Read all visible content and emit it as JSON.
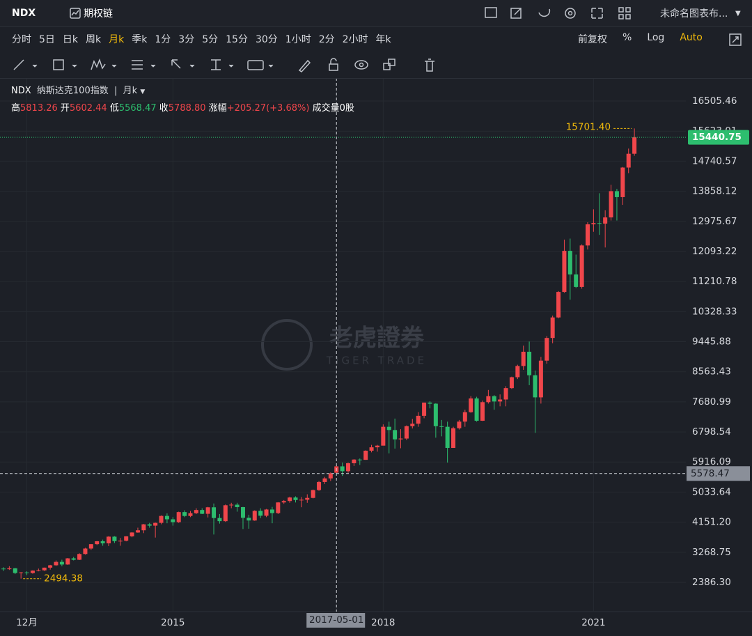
{
  "toolbar": {
    "symbol": "NDX",
    "option_chain": "期权链",
    "layout_name": "未命名图表布..."
  },
  "periods": [
    "分时",
    "5日",
    "日k",
    "周k",
    "月k",
    "季k",
    "1分",
    "3分",
    "5分",
    "15分",
    "30分",
    "1小时",
    "2分",
    "2小时",
    "年k"
  ],
  "right_controls": [
    "前复权",
    "%",
    "Log",
    "Auto"
  ],
  "legend": {
    "symbol": "NDX",
    "name": "纳斯达克100指数",
    "period": "月k",
    "high_label": "高",
    "high": 5813.26,
    "open_label": "开",
    "open": 5602.44,
    "low_label": "低",
    "low": 5568.47,
    "close_label": "收",
    "close": {
      "value": 5788.8,
      "label": "5788.80"
    },
    "change_label": "涨幅",
    "change": {
      "value": 205.27,
      "label": "+205.27"
    },
    "change_pct": {
      "value": 3.68,
      "label": "(+3.68%)"
    },
    "volume_label": "成交量",
    "volume": {
      "value": 0,
      "label": "0股"
    }
  },
  "watermark": {
    "brand": "老虎證券",
    "brand_en": "TIGER TRADE"
  },
  "chart_data": {
    "type": "candlestick",
    "up_color": "#f0464b",
    "down_color": "#2dbd6e",
    "last_price_color": "#2dbd6e",
    "annotation_color": "#f0b90b",
    "grid": true,
    "x": [
      "2012-08-01",
      "2012-09-01",
      "2012-10-01",
      "2012-11-01",
      "2012-12-01",
      "2013-01-01",
      "2013-02-01",
      "2013-03-01",
      "2013-04-01",
      "2013-05-01",
      "2013-06-01",
      "2013-07-01",
      "2013-08-01",
      "2013-09-01",
      "2013-10-01",
      "2013-11-01",
      "2013-12-01",
      "2014-01-01",
      "2014-02-01",
      "2014-03-01",
      "2014-04-01",
      "2014-05-01",
      "2014-06-01",
      "2014-07-01",
      "2014-08-01",
      "2014-09-01",
      "2014-10-01",
      "2014-11-01",
      "2014-12-01",
      "2015-01-01",
      "2015-02-01",
      "2015-03-01",
      "2015-04-01",
      "2015-05-01",
      "2015-06-01",
      "2015-07-01",
      "2015-08-01",
      "2015-09-01",
      "2015-10-01",
      "2015-11-01",
      "2015-12-01",
      "2016-01-01",
      "2016-02-01",
      "2016-03-01",
      "2016-04-01",
      "2016-05-01",
      "2016-06-01",
      "2016-07-01",
      "2016-08-01",
      "2016-09-01",
      "2016-10-01",
      "2016-11-01",
      "2016-12-01",
      "2017-01-01",
      "2017-02-01",
      "2017-03-01",
      "2017-04-01",
      "2017-05-01",
      "2017-06-01",
      "2017-07-01",
      "2017-08-01",
      "2017-09-01",
      "2017-10-01",
      "2017-11-01",
      "2017-12-01",
      "2018-01-01",
      "2018-02-01",
      "2018-03-01",
      "2018-04-01",
      "2018-05-01",
      "2018-06-01",
      "2018-07-01",
      "2018-08-01",
      "2018-09-01",
      "2018-10-01",
      "2018-11-01",
      "2018-12-01",
      "2019-01-01",
      "2019-02-01",
      "2019-03-01",
      "2019-04-01",
      "2019-05-01",
      "2019-06-01",
      "2019-07-01",
      "2019-08-01",
      "2019-09-01",
      "2019-10-01",
      "2019-11-01",
      "2019-12-01",
      "2020-01-01",
      "2020-02-01",
      "2020-03-01",
      "2020-04-01",
      "2020-05-01",
      "2020-06-01",
      "2020-07-01",
      "2020-08-01",
      "2020-09-01",
      "2020-10-01",
      "2020-11-01",
      "2020-12-01",
      "2021-01-01",
      "2021-02-01",
      "2021-03-01",
      "2021-04-01",
      "2021-05-01",
      "2021-06-01",
      "2021-07-01",
      "2021-08-01"
    ],
    "open": [
      2790,
      2772,
      2799,
      2660,
      2677,
      2660,
      2731,
      2739,
      2818,
      2887,
      2987,
      2910,
      3091,
      3049,
      3218,
      3378,
      3507,
      3592,
      3531,
      3727,
      3596,
      3607,
      3736,
      3849,
      3914,
      4089,
      4050,
      4131,
      4335,
      4236,
      4152,
      4447,
      4334,
      4415,
      4508,
      4397,
      4588,
      4274,
      4181,
      4648,
      4665,
      4593,
      4280,
      4201,
      4484,
      4341,
      4523,
      4418,
      4731,
      4772,
      4875,
      4801,
      4810,
      4864,
      5094,
      5330,
      5436,
      5602.44,
      5788.8,
      5647,
      5880,
      5988,
      5980,
      6248,
      6348,
      6397,
      6950,
      6854,
      6581,
      6605,
      6967,
      7040,
      7272,
      7660,
      7627,
      6967,
      6950,
      6330,
      6907,
      7101,
      7378,
      7781,
      7127,
      7672,
      7848,
      7692,
      7750,
      8084,
      8404,
      8733,
      9151,
      8462,
      7813,
      8890,
      9555,
      10157,
      10905,
      12111,
      11418,
      11052,
      12269,
      12888,
      12925,
      12909,
      13091,
      13861,
      13687,
      14554,
      14959
    ],
    "high": [
      2830,
      2860,
      2810,
      2690,
      2710,
      2740,
      2790,
      2820,
      2900,
      3030,
      3050,
      3100,
      3130,
      3240,
      3400,
      3510,
      3600,
      3640,
      3740,
      3740,
      3690,
      3740,
      3860,
      3990,
      4100,
      4130,
      4140,
      4350,
      4410,
      4300,
      4460,
      4500,
      4480,
      4560,
      4560,
      4600,
      4700,
      4390,
      4670,
      4720,
      4720,
      4600,
      4370,
      4500,
      4560,
      4540,
      4600,
      4740,
      4800,
      4900,
      4910,
      4890,
      4970,
      5110,
      5360,
      5480,
      5610,
      5813.26,
      5900,
      5900,
      6000,
      6020,
      6260,
      6420,
      6420,
      7020,
      7100,
      7190,
      6880,
      6990,
      7180,
      7380,
      7660,
      7700,
      7640,
      7150,
      7100,
      6950,
      7150,
      7450,
      7850,
      7830,
      7720,
      8030,
      7880,
      7900,
      8140,
      8420,
      8770,
      9330,
      9450,
      8600,
      9000,
      9610,
      10210,
      10930,
      12440,
      12470,
      12000,
      12300,
      12950,
      13330,
      13800,
      13300,
      14050,
      13930,
      14570,
      15110,
      15701.4
    ],
    "low": [
      2720,
      2750,
      2630,
      2494.38,
      2600,
      2640,
      2710,
      2720,
      2760,
      2870,
      2860,
      2900,
      3030,
      3040,
      3200,
      3340,
      3480,
      3460,
      3450,
      3540,
      3460,
      3590,
      3710,
      3840,
      3830,
      3990,
      3700,
      4090,
      4120,
      4050,
      4130,
      4300,
      4300,
      4390,
      4390,
      4290,
      3790,
      4110,
      4160,
      4560,
      4460,
      3950,
      3960,
      4190,
      4270,
      4300,
      4120,
      4390,
      4690,
      4720,
      4730,
      4590,
      4720,
      4850,
      5070,
      5270,
      5360,
      5568.47,
      5510,
      5600,
      5800,
      5830,
      5980,
      6200,
      6220,
      6400,
      6170,
      6310,
      6320,
      6560,
      6900,
      6950,
      7200,
      7490,
      6630,
      6670,
      5900,
      6330,
      6870,
      6950,
      7360,
      7100,
      7120,
      7630,
      7450,
      7550,
      7550,
      8060,
      8350,
      8620,
      8170,
      6771,
      7630,
      8800,
      9400,
      10130,
      10880,
      10677,
      11020,
      11000,
      12150,
      12670,
      12580,
      12209,
      13000,
      13000,
      13460,
      14390,
      14900
    ],
    "close": [
      2772,
      2799,
      2660,
      2677,
      2660,
      2731,
      2739,
      2818,
      2887,
      2987,
      2910,
      3091,
      3049,
      3218,
      3378,
      3507,
      3592,
      3531,
      3727,
      3596,
      3607,
      3736,
      3849,
      3914,
      4089,
      4050,
      4131,
      4335,
      4236,
      4152,
      4447,
      4334,
      4415,
      4508,
      4397,
      4588,
      4274,
      4181,
      4648,
      4665,
      4593,
      4280,
      4201,
      4484,
      4341,
      4523,
      4418,
      4731,
      4772,
      4875,
      4801,
      4810,
      4864,
      5094,
      5330,
      5436,
      5583.53,
      5788.8,
      5647,
      5880,
      5988,
      5980,
      6248,
      6348,
      6397,
      6950,
      6854,
      6581,
      6605,
      6967,
      7040,
      7272,
      7660,
      7627,
      6967,
      6950,
      6330,
      6907,
      7101,
      7378,
      7781,
      7127,
      7672,
      7848,
      7692,
      7750,
      8084,
      8404,
      8733,
      9151,
      8462,
      7813,
      8890,
      9555,
      10157,
      10905,
      12111,
      11418,
      11052,
      12269,
      12888,
      12925,
      12909,
      13091,
      13861,
      13687,
      14554,
      14959,
      15440.75
    ],
    "ylim": [
      1528,
      17180
    ],
    "yticks": [
      {
        "value": 2386.3,
        "label": "2386.30"
      },
      {
        "value": 3268.75,
        "label": "3268.75"
      },
      {
        "value": 4151.2,
        "label": "4151.20"
      },
      {
        "value": 5033.64,
        "label": "5033.64"
      },
      {
        "value": 5916.09,
        "label": "5916.09"
      },
      {
        "value": 6798.54,
        "label": "6798.54"
      },
      {
        "value": 7680.99,
        "label": "7680.99"
      },
      {
        "value": 8563.43,
        "label": "8563.43"
      },
      {
        "value": 9445.88,
        "label": "9445.88"
      },
      {
        "value": 10328.33,
        "label": "10328.33"
      },
      {
        "value": 11210.78,
        "label": "11210.78"
      },
      {
        "value": 12093.22,
        "label": "12093.22"
      },
      {
        "value": 12975.67,
        "label": "12975.67"
      },
      {
        "value": 13858.12,
        "label": "13858.12"
      },
      {
        "value": 14740.57,
        "label": "14740.57"
      },
      {
        "value": 15623.01,
        "label": "15623.01"
      },
      {
        "value": 16505.46,
        "label": "16505.46"
      }
    ],
    "xticks": [
      {
        "value": "2012-12-01",
        "label": "12月"
      },
      {
        "value": "2015-01-01",
        "label": "2015"
      },
      {
        "value": "2018-01-01",
        "label": "2018"
      },
      {
        "value": "2021-01-01",
        "label": "2021"
      }
    ],
    "annotations": [
      {
        "value": 15701.4,
        "label": "15701.40"
      },
      {
        "value": 2494.38,
        "label": "2494.38"
      }
    ],
    "crosshair": {
      "x": "2017-05-01",
      "y": 5578.47
    }
  }
}
